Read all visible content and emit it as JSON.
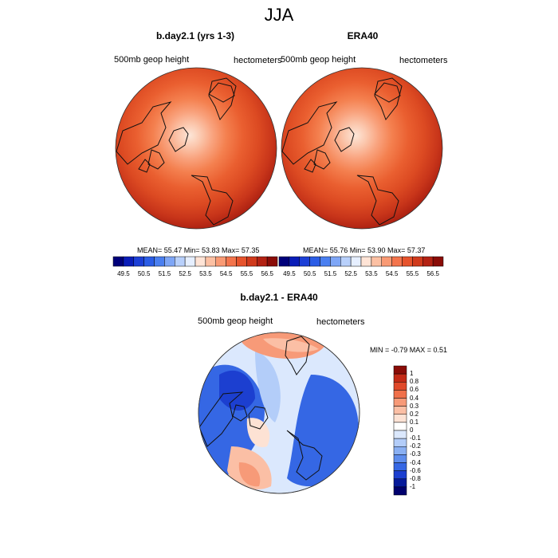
{
  "figure": {
    "season": "JJA"
  },
  "panel_model": {
    "title": "b.day2.1 (yrs 1-3)",
    "field_label": "500mb geop height",
    "units": "hectometers",
    "stats": "MEAN=  55.47  Min=  53.83  Max=  57.35"
  },
  "panel_obs": {
    "title": "ERA40",
    "field_label": "500mb geop height",
    "units": "hectometers",
    "stats": "MEAN=  55.76  Min=  53.90  Max=  57.37"
  },
  "panel_diff": {
    "title": "b.day2.1 - ERA40",
    "field_label": "500mb geop height",
    "units": "hectometers",
    "minmax": "MIN =  -0.79 MAX =   0.51"
  },
  "colorbar_height": {
    "ticks": [
      "49.5",
      "50.5",
      "51.5",
      "52.5",
      "53.5",
      "54.5",
      "55.5",
      "56.5"
    ],
    "colors": [
      "#00007a",
      "#0a1db8",
      "#1c3fd6",
      "#2b5de6",
      "#4a7ff0",
      "#7ea6f6",
      "#b8d0fb",
      "#e6efff",
      "#ffe4d6",
      "#fcc0a3",
      "#f99a74",
      "#f3744c",
      "#e6532c",
      "#d03a1c",
      "#b32213",
      "#8a0c07"
    ]
  },
  "colorbar_diff": {
    "labels": [
      "1",
      "0.8",
      "0.6",
      "0.4",
      "0.3",
      "0.2",
      "0.1",
      "0",
      "-0.1",
      "-0.2",
      "-0.3",
      "-0.4",
      "-0.6",
      "-0.8",
      "-1"
    ],
    "colors": [
      "#8a0c07",
      "#c42a16",
      "#e0492a",
      "#f0704a",
      "#f79a78",
      "#fbbfa5",
      "#fde2d4",
      "#ffffff",
      "#dbe8fd",
      "#b3cdf9",
      "#8ab0f3",
      "#5e8ded",
      "#3567e4",
      "#1c3fd0",
      "#061a9a",
      "#00006e"
    ]
  }
}
